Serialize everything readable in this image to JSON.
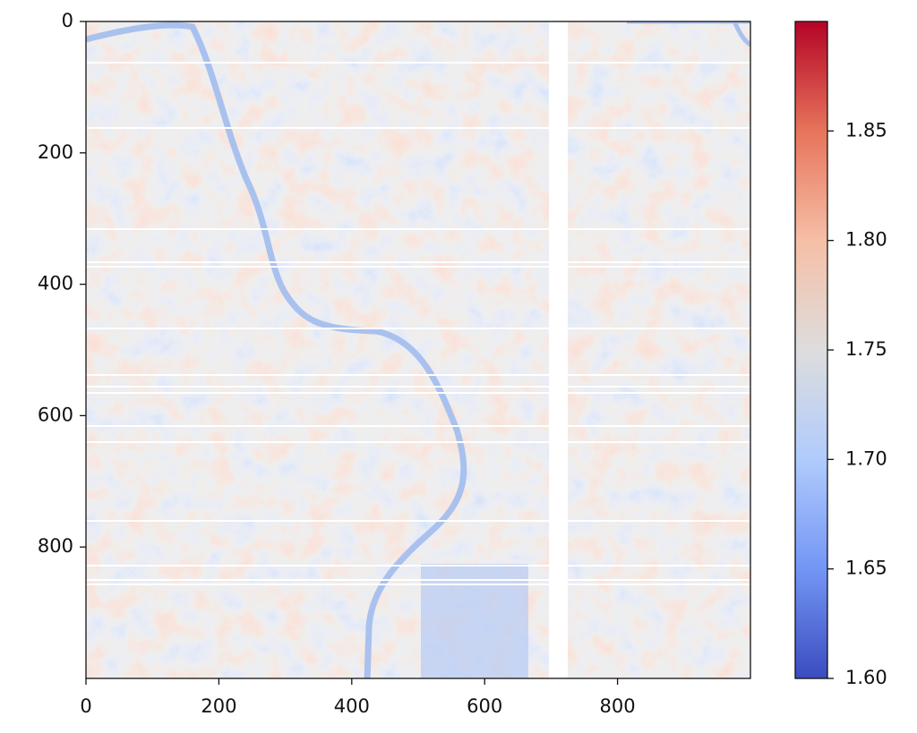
{
  "chart_data": {
    "type": "heatmap",
    "xlim": [
      0,
      1000
    ],
    "ylim": [
      1000,
      0
    ],
    "xticks": [
      0,
      200,
      400,
      600,
      800
    ],
    "yticks": [
      0,
      200,
      400,
      600,
      800
    ],
    "colorbar": {
      "clim": [
        1.6,
        1.9
      ],
      "ticks": [
        {
          "value": 1.6,
          "label": "1.60"
        },
        1.65,
        {
          "value": 1.7,
          "label": "1.70"
        },
        1.75,
        {
          "value": 1.8,
          "label": "1.80"
        },
        1.85
      ],
      "colors": [
        "#3b4cc0",
        "#7396f5",
        "#b0cbfc",
        "#dddddd",
        "#f6bfa6",
        "#e7745b",
        "#b40426"
      ]
    }
  }
}
